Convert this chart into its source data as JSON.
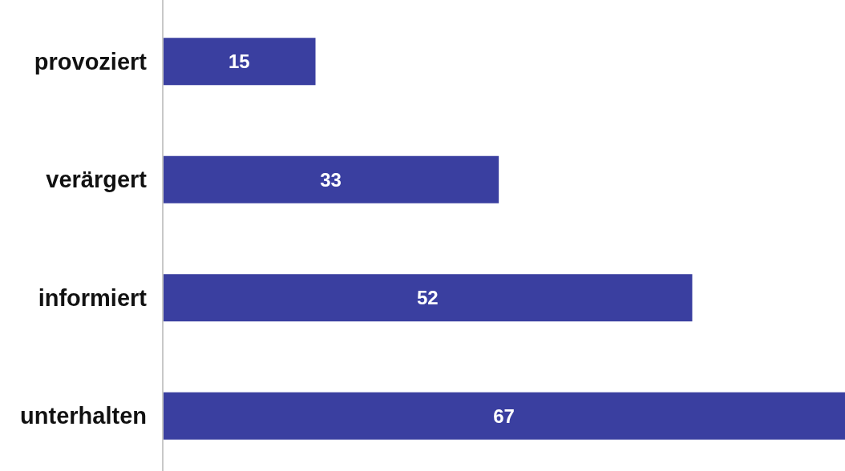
{
  "chart_data": {
    "type": "bar",
    "orientation": "horizontal",
    "categories": [
      "provoziert",
      "verärgert",
      "informiert",
      "unterhalten"
    ],
    "values": [
      15,
      33,
      52,
      67
    ],
    "color": "#3a3fa0",
    "data_labels": true
  }
}
